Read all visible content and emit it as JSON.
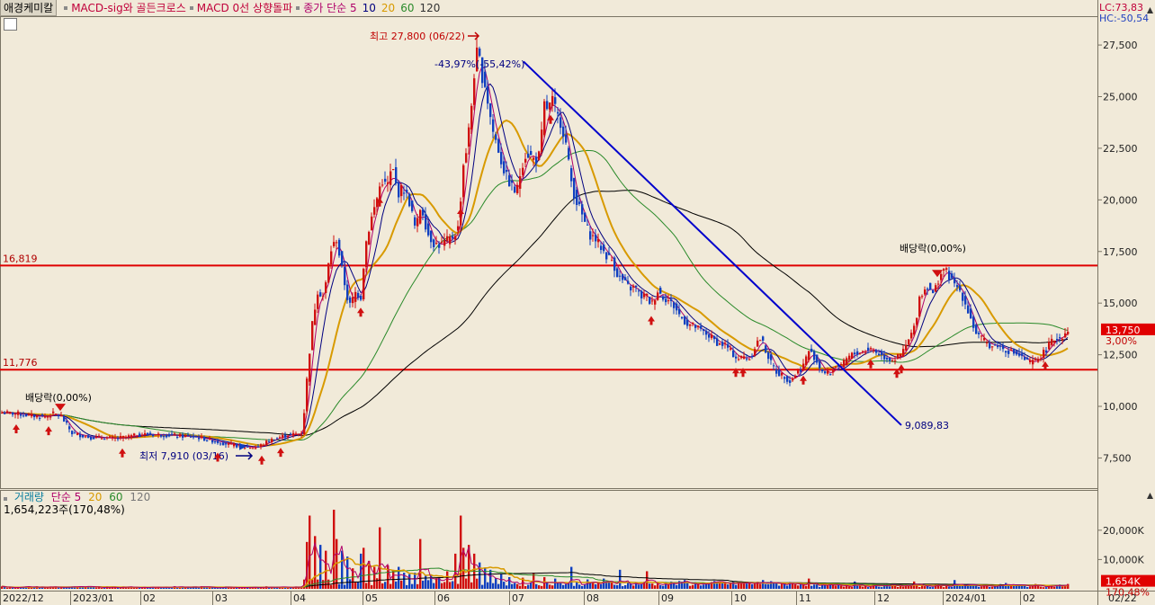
{
  "header": {
    "title": "애경케미칼",
    "indicators": [
      "MACD-sig와 골든크로스",
      "MACD 0선 상향돌파"
    ],
    "price_ma_label": "종가 단순 5",
    "ma_periods": [
      "10",
      "20",
      "60",
      "120"
    ]
  },
  "volume_header": {
    "label": "거래량",
    "ma_label": "단순 5",
    "ma_periods": [
      "20",
      "60",
      "120"
    ],
    "current": "1,654,223주(170,48%)"
  },
  "right_info": {
    "lc": "LC:73,83",
    "hc": "HC:-50,54"
  },
  "price_badge": {
    "price": "13,750",
    "pct": "3,00%"
  },
  "volume_badge": {
    "volume": "1,654K",
    "pct": "170,48%"
  },
  "date_label": "02/22",
  "annotations": {
    "high": "최고 27,800 (06/22)",
    "low": "최저 7,910 (03/16)",
    "trend_pct": "-43,97%(-55,42%)",
    "trend_end": "9,089,83",
    "dividend1": "배당락(0,00%)",
    "dividend2": "배당락(0,00%)",
    "level_high": "16,819",
    "level_low": "11,776"
  },
  "colors": {
    "background": "#f1ead9",
    "up": "#d01010",
    "down": "#1040c0",
    "ma5": "#b0006a",
    "ma10": "#000080",
    "ma20": "#d89a00",
    "ma60": "#2a8a2a",
    "ma120": "#000000",
    "support": "#e00000",
    "trendline": "#0000cc"
  },
  "chart_data": [
    {
      "type": "candlestick",
      "y_axis": {
        "ticks": [
          7500,
          10000,
          12500,
          15000,
          17500,
          20000,
          22500,
          25000,
          27500
        ],
        "tick_labels": [
          "7,500",
          "10,000",
          "12,500",
          "15,000",
          "17,500",
          "20,000",
          "22,500",
          "25,000",
          "27,500"
        ],
        "ylim": [
          6300,
          28200
        ]
      },
      "x_axis": {
        "labels": [
          "2022/12",
          "2023/01",
          "02",
          "03",
          "04",
          "05",
          "06",
          "07",
          "08",
          "09",
          "10",
          "11",
          "12",
          "2024/01",
          "02"
        ]
      },
      "horizontal_lines": [
        16819,
        11776
      ],
      "high": {
        "value": 27800,
        "date": "06/22"
      },
      "low": {
        "value": 7910,
        "date": "03/16"
      },
      "last_close": 13750,
      "trend_line": {
        "from": 26700,
        "to": 9089.83
      },
      "close_path": [
        [
          0,
          9700
        ],
        [
          18,
          9650
        ],
        [
          34,
          9550
        ],
        [
          50,
          9500
        ],
        [
          60,
          9650
        ],
        [
          68,
          9500
        ],
        [
          80,
          8700
        ],
        [
          100,
          8500
        ],
        [
          130,
          8450
        ],
        [
          160,
          8650
        ],
        [
          190,
          8600
        ],
        [
          220,
          8500
        ],
        [
          250,
          8200
        ],
        [
          270,
          8050
        ],
        [
          285,
          8000
        ],
        [
          300,
          8350
        ],
        [
          318,
          8600
        ],
        [
          336,
          8700
        ],
        [
          342,
          11800
        ],
        [
          347,
          14000
        ],
        [
          353,
          15600
        ],
        [
          360,
          15300
        ],
        [
          367,
          17500
        ],
        [
          374,
          18100
        ],
        [
          381,
          16400
        ],
        [
          388,
          14800
        ],
        [
          395,
          15500
        ],
        [
          401,
          15300
        ],
        [
          406,
          17800
        ],
        [
          412,
          19000
        ],
        [
          418,
          19900
        ],
        [
          424,
          21000
        ],
        [
          430,
          20600
        ],
        [
          436,
          21600
        ],
        [
          442,
          20300
        ],
        [
          448,
          20600
        ],
        [
          455,
          19900
        ],
        [
          462,
          18500
        ],
        [
          468,
          19800
        ],
        [
          475,
          18400
        ],
        [
          482,
          17900
        ],
        [
          489,
          17800
        ],
        [
          496,
          18000
        ],
        [
          503,
          18200
        ],
        [
          510,
          18700
        ],
        [
          514,
          21500
        ],
        [
          519,
          22600
        ],
        [
          523,
          24100
        ],
        [
          527,
          26100
        ],
        [
          531,
          27400
        ],
        [
          535,
          26100
        ],
        [
          539,
          25600
        ],
        [
          543,
          24500
        ],
        [
          548,
          23300
        ],
        [
          553,
          22600
        ],
        [
          558,
          21700
        ],
        [
          563,
          21100
        ],
        [
          568,
          20700
        ],
        [
          574,
          20300
        ],
        [
          580,
          21700
        ],
        [
          585,
          22300
        ],
        [
          590,
          22100
        ],
        [
          595,
          21900
        ],
        [
          600,
          22200
        ],
        [
          605,
          24600
        ],
        [
          609,
          24400
        ],
        [
          614,
          24800
        ],
        [
          619,
          24100
        ],
        [
          624,
          23700
        ],
        [
          629,
          22700
        ],
        [
          634,
          21100
        ],
        [
          639,
          20100
        ],
        [
          644,
          19600
        ],
        [
          650,
          18900
        ],
        [
          656,
          18300
        ],
        [
          662,
          18100
        ],
        [
          668,
          17700
        ],
        [
          674,
          17300
        ],
        [
          680,
          17100
        ],
        [
          686,
          16400
        ],
        [
          692,
          16100
        ],
        [
          700,
          15700
        ],
        [
          706,
          15800
        ],
        [
          712,
          15300
        ],
        [
          718,
          15400
        ],
        [
          724,
          14900
        ],
        [
          731,
          15600
        ],
        [
          737,
          15300
        ],
        [
          744,
          15100
        ],
        [
          750,
          14800
        ],
        [
          757,
          14300
        ],
        [
          764,
          14000
        ],
        [
          771,
          13900
        ],
        [
          778,
          13700
        ],
        [
          785,
          13500
        ],
        [
          792,
          13300
        ],
        [
          799,
          13000
        ],
        [
          806,
          13000
        ],
        [
          813,
          12600
        ],
        [
          820,
          12300
        ],
        [
          827,
          12400
        ],
        [
          834,
          12300
        ],
        [
          841,
          13100
        ],
        [
          846,
          13300
        ],
        [
          851,
          12700
        ],
        [
          857,
          12100
        ],
        [
          864,
          11600
        ],
        [
          871,
          11500
        ],
        [
          878,
          11200
        ],
        [
          885,
          11600
        ],
        [
          892,
          11900
        ],
        [
          899,
          12700
        ],
        [
          905,
          12400
        ],
        [
          911,
          11900
        ],
        [
          917,
          11600
        ],
        [
          923,
          11600
        ],
        [
          929,
          12000
        ],
        [
          935,
          11900
        ],
        [
          941,
          12300
        ],
        [
          947,
          12500
        ],
        [
          954,
          12600
        ],
        [
          961,
          12700
        ],
        [
          968,
          12800
        ],
        [
          975,
          12600
        ],
        [
          982,
          12400
        ],
        [
          989,
          12300
        ],
        [
          996,
          12300
        ],
        [
          1003,
          12600
        ],
        [
          1010,
          13200
        ],
        [
          1017,
          13900
        ],
        [
          1022,
          15300
        ],
        [
          1027,
          15600
        ],
        [
          1032,
          15900
        ],
        [
          1037,
          15400
        ],
        [
          1042,
          16000
        ],
        [
          1048,
          16700
        ],
        [
          1054,
          16400
        ],
        [
          1060,
          15900
        ],
        [
          1066,
          15700
        ],
        [
          1072,
          15100
        ],
        [
          1078,
          14400
        ],
        [
          1084,
          13600
        ],
        [
          1090,
          13300
        ],
        [
          1096,
          13100
        ],
        [
          1102,
          12900
        ],
        [
          1108,
          13000
        ],
        [
          1114,
          12800
        ],
        [
          1120,
          12700
        ],
        [
          1126,
          12600
        ],
        [
          1132,
          12500
        ],
        [
          1138,
          12300
        ],
        [
          1144,
          12100
        ],
        [
          1150,
          12200
        ],
        [
          1156,
          12400
        ],
        [
          1162,
          12700
        ],
        [
          1168,
          13100
        ],
        [
          1174,
          13300
        ],
        [
          1180,
          13350
        ],
        [
          1187,
          13750
        ]
      ],
      "series": [
        {
          "name": "5",
          "role": "ma5"
        },
        {
          "name": "10",
          "role": "ma10"
        },
        {
          "name": "20",
          "role": "ma20"
        },
        {
          "name": "60",
          "role": "ma60"
        },
        {
          "name": "120",
          "role": "ma120"
        }
      ],
      "signal_arrows_up": [
        18,
        54,
        136,
        242,
        291,
        312,
        401,
        422,
        512,
        612,
        724,
        818,
        826,
        893,
        968,
        997,
        1002,
        1162
      ],
      "signal_arrows_down": [
        67,
        1042
      ],
      "signal_arrows_side": [
        270
      ]
    },
    {
      "type": "bar",
      "title": "거래량",
      "y_axis": {
        "ticks": [
          10000,
          20000
        ],
        "tick_labels": [
          "10,000K",
          "20,000K"
        ],
        "ylim": [
          0,
          27000
        ]
      },
      "last_volume": 1654,
      "spikes": [
        [
          342,
          16000
        ],
        [
          345,
          25000
        ],
        [
          350,
          18000
        ],
        [
          356,
          15000
        ],
        [
          363,
          13000
        ],
        [
          370,
          27000
        ],
        [
          375,
          17000
        ],
        [
          380,
          13000
        ],
        [
          386,
          11000
        ],
        [
          392,
          7000
        ],
        [
          400,
          12000
        ],
        [
          405,
          14000
        ],
        [
          410,
          9500
        ],
        [
          416,
          7500
        ],
        [
          422,
          21000
        ],
        [
          430,
          8000
        ],
        [
          436,
          6500
        ],
        [
          442,
          7500
        ],
        [
          448,
          5500
        ],
        [
          455,
          5000
        ],
        [
          462,
          5500
        ],
        [
          466,
          17000
        ],
        [
          472,
          4500
        ],
        [
          480,
          4500
        ],
        [
          488,
          3800
        ],
        [
          496,
          6000
        ],
        [
          506,
          12000
        ],
        [
          512,
          25000
        ],
        [
          516,
          14000
        ],
        [
          521,
          15000
        ],
        [
          527,
          12000
        ],
        [
          532,
          9000
        ],
        [
          538,
          7000
        ],
        [
          546,
          6500
        ],
        [
          556,
          5000
        ],
        [
          566,
          4000
        ],
        [
          580,
          3800
        ],
        [
          592,
          5500
        ],
        [
          605,
          4000
        ],
        [
          616,
          3500
        ],
        [
          636,
          7500
        ],
        [
          652,
          3200
        ],
        [
          670,
          3500
        ],
        [
          690,
          6500
        ],
        [
          720,
          6000
        ],
        [
          760,
          3000
        ],
        [
          800,
          2500
        ],
        [
          847,
          3000
        ],
        [
          900,
          3500
        ],
        [
          951,
          2500
        ],
        [
          1016,
          2500
        ],
        [
          1060,
          3000
        ],
        [
          1118,
          2000
        ],
        [
          1186,
          1654
        ]
      ]
    }
  ]
}
